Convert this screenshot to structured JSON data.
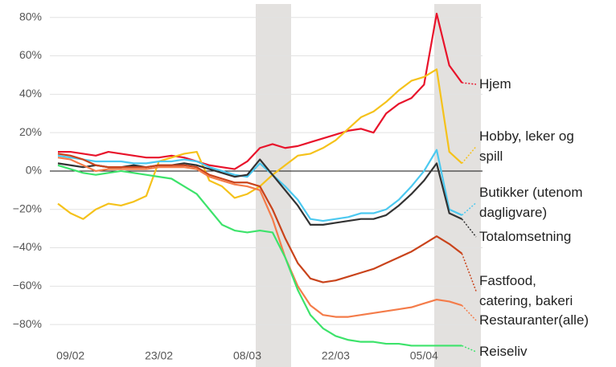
{
  "chart_data": {
    "type": "line",
    "categories": [
      null,
      "09/02",
      null,
      null,
      null,
      null,
      null,
      null,
      "23/02",
      null,
      null,
      null,
      null,
      null,
      null,
      "08/03",
      null,
      null,
      null,
      null,
      null,
      null,
      "22/03",
      null,
      null,
      null,
      null,
      null,
      null,
      "05/04",
      null,
      null,
      null
    ],
    "ylim": [
      -95,
      87
    ],
    "yticks": [
      {
        "value": -80,
        "label": "−80%"
      },
      {
        "value": -60,
        "label": "−60%"
      },
      {
        "value": -40,
        "label": "−40%"
      },
      {
        "value": -20,
        "label": "−20%"
      },
      {
        "value": 0,
        "label": "0%"
      },
      {
        "value": 20,
        "label": "20%"
      },
      {
        "value": 40,
        "label": "40%"
      },
      {
        "value": 60,
        "label": "60%"
      },
      {
        "value": 80,
        "label": "80%"
      }
    ],
    "grid": true,
    "series": [
      {
        "name": "Hjem",
        "color": "#e8132b",
        "values": [
          10,
          10,
          9,
          8,
          10,
          9,
          8,
          7,
          7,
          8,
          7,
          5,
          3,
          2,
          1,
          5,
          12,
          14,
          12,
          13,
          15,
          17,
          19,
          21,
          22,
          20,
          30,
          35,
          38,
          45,
          82,
          55,
          46
        ]
      },
      {
        "name": "Hobby, leker og\nspill",
        "color": "#f5c21b",
        "values": [
          -17,
          -22,
          -25,
          -20,
          -17,
          -18,
          -16,
          -13,
          5,
          7,
          9,
          10,
          -5,
          -8,
          -14,
          -12,
          -8,
          -2,
          3,
          8,
          9,
          12,
          16,
          22,
          28,
          31,
          36,
          42,
          47,
          49,
          53,
          10,
          4
        ]
      },
      {
        "name": "Butikker (utenom\ndagligvare)",
        "color": "#4cc9f0",
        "values": [
          8,
          7,
          6,
          5,
          5,
          5,
          4,
          4,
          5,
          5,
          6,
          5,
          2,
          0,
          -2,
          -3,
          4,
          -2,
          -8,
          -15,
          -25,
          -26,
          -25,
          -24,
          -22,
          -22,
          -20,
          -15,
          -8,
          0,
          11,
          -20,
          -23
        ]
      },
      {
        "name": "Totalomsetning",
        "color": "#333333",
        "values": [
          4,
          3,
          2,
          3,
          2,
          2,
          3,
          2,
          3,
          3,
          4,
          3,
          1,
          -1,
          -3,
          -2,
          6,
          -2,
          -10,
          -18,
          -28,
          -28,
          -27,
          -26,
          -25,
          -25,
          -23,
          -18,
          -12,
          -5,
          4,
          -22,
          -25
        ]
      },
      {
        "name": "Fastfood,\ncatering, bakeri",
        "color": "#c9431b",
        "values": [
          9,
          8,
          6,
          3,
          2,
          2,
          2,
          2,
          3,
          3,
          3,
          2,
          -2,
          -4,
          -6,
          -6,
          -8,
          -20,
          -35,
          -48,
          -56,
          -58,
          -57,
          -55,
          -53,
          -51,
          -48,
          -45,
          -42,
          -38,
          -34,
          -38,
          -43
        ]
      },
      {
        "name": "Restauranter(alle)",
        "color": "#f47c4a",
        "values": [
          7,
          6,
          3,
          0,
          1,
          1,
          1,
          1,
          2,
          2,
          2,
          1,
          -3,
          -5,
          -7,
          -8,
          -10,
          -25,
          -45,
          -60,
          -70,
          -75,
          -76,
          -76,
          -75,
          -74,
          -73,
          -72,
          -71,
          -69,
          -67,
          -68,
          -70
        ]
      },
      {
        "name": "Reiseliv",
        "color": "#3de36b",
        "values": [
          3,
          1,
          -1,
          -2,
          -1,
          0,
          -1,
          -2,
          -3,
          -4,
          -8,
          -12,
          -20,
          -28,
          -31,
          -32,
          -31,
          -32,
          -45,
          -62,
          -75,
          -82,
          -86,
          -88,
          -89,
          -89,
          -90,
          -90,
          -91,
          -91,
          -91,
          -91,
          -91
        ]
      }
    ]
  }
}
